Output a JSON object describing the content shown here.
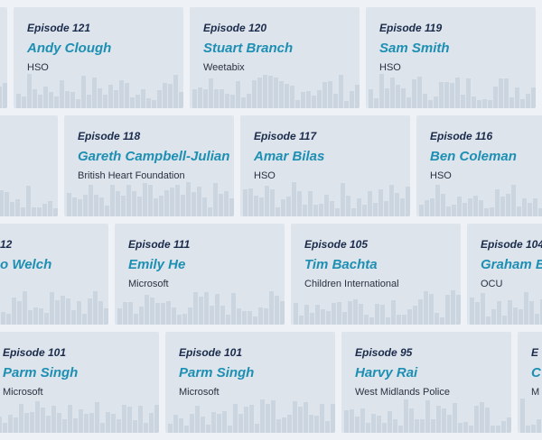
{
  "rows": [
    {
      "cards": [
        {
          "episode": "Episode 121",
          "name": "Andy Clough",
          "org": "HSO"
        },
        {
          "episode": "Episode 120",
          "name": "Stuart Branch",
          "org": "Weetabix"
        },
        {
          "episode": "Episode 119",
          "name": "Sam Smith",
          "org": "HSO"
        }
      ]
    },
    {
      "cards": [
        {
          "episode": "Episode 118",
          "name": "Gareth Campbell-Julian",
          "org": "British Heart Foundation"
        },
        {
          "episode": "Episode 117",
          "name": "Amar Bilas",
          "org": "HSO"
        },
        {
          "episode": "Episode 116",
          "name": "Ben Coleman",
          "org": "HSO"
        }
      ]
    },
    {
      "cards": [
        {
          "episode": "12",
          "name": "o Welch"
        },
        {
          "episode": "Episode 111",
          "name": "Emily He",
          "org": "Microsoft"
        },
        {
          "episode": "Episode 105",
          "name": "Tim Bachta",
          "org": "Children International"
        },
        {
          "episode": "Episode 104",
          "name": "Graham B",
          "org": "OCU"
        }
      ]
    },
    {
      "cards": [
        {
          "episode": "Episode 101",
          "name": "Parm Singh",
          "org": "Microsoft"
        },
        {
          "episode": "Episode 101",
          "name": "Parm Singh",
          "org": "Microsoft"
        },
        {
          "episode": "Episode 95",
          "name": "Harvy Rai",
          "org": "West Midlands Police"
        },
        {
          "episode": "E",
          "name": "C",
          "org": "M"
        }
      ]
    }
  ]
}
